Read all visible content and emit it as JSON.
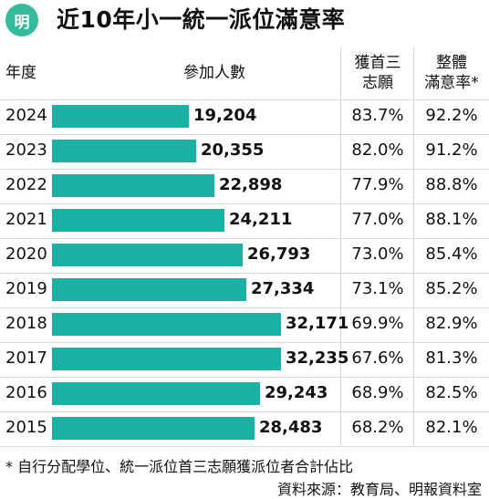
{
  "header": {
    "logo_char": "明",
    "title": "近10年小一統一派位滿意率"
  },
  "table_headers": {
    "year": "年度",
    "participants": "參加人數",
    "first_three_line1": "獲首三",
    "first_three_line2": "志願",
    "satisfaction_line1": "整體",
    "satisfaction_line2": "滿意率*"
  },
  "chart_data": {
    "type": "bar",
    "orientation": "horizontal",
    "title": "近10年小一統一派位滿意率",
    "categories": [
      "2024",
      "2023",
      "2022",
      "2021",
      "2020",
      "2019",
      "2018",
      "2017",
      "2016",
      "2015"
    ],
    "series": [
      {
        "name": "參加人數",
        "values": [
          19204,
          20355,
          22898,
          24211,
          26793,
          27334,
          32171,
          32235,
          29243,
          28483
        ]
      }
    ],
    "value_labels": [
      "19,204",
      "20,355",
      "22,898",
      "24,211",
      "26,793",
      "27,334",
      "32,171",
      "32,235",
      "29,243",
      "28,483"
    ],
    "first_three_choices": [
      "83.7%",
      "82.0%",
      "77.9%",
      "77.0%",
      "73.0%",
      "73.1%",
      "69.9%",
      "67.6%",
      "68.9%",
      "68.2%"
    ],
    "overall_satisfaction": [
      "92.2%",
      "91.2%",
      "88.8%",
      "88.1%",
      "85.4%",
      "85.2%",
      "82.9%",
      "81.3%",
      "82.5%",
      "82.1%"
    ],
    "bar_color": "#1bb0a5"
  },
  "footnotes": {
    "note": "* 自行分配學位、統一派位首三志願獲派位者合計佔比",
    "source": "資料來源：教育局、明報資料室"
  },
  "colors": {
    "accent": "#35ba9b",
    "bar": "#1bb0a5"
  }
}
